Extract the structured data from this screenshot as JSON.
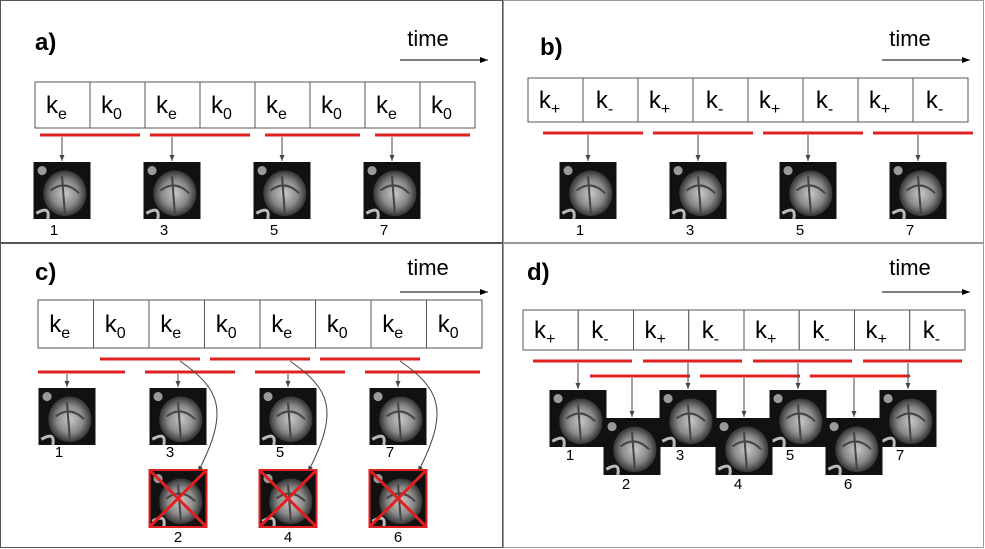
{
  "panels": [
    {
      "label": "a)",
      "time": "time",
      "cells": [
        {
          "main": "k",
          "sub": "e"
        },
        {
          "main": "k",
          "sub": "0"
        },
        {
          "main": "k",
          "sub": "e"
        },
        {
          "main": "k",
          "sub": "0"
        },
        {
          "main": "k",
          "sub": "e"
        },
        {
          "main": "k",
          "sub": "0"
        },
        {
          "main": "k",
          "sub": "e"
        },
        {
          "main": "k",
          "sub": "0"
        }
      ],
      "images": [
        "1",
        "3",
        "5",
        "7"
      ]
    },
    {
      "label": "b)",
      "time": "time",
      "cells": [
        {
          "main": "k",
          "sub": "+"
        },
        {
          "main": "k",
          "sub": "-"
        },
        {
          "main": "k",
          "sub": "+"
        },
        {
          "main": "k",
          "sub": "-"
        },
        {
          "main": "k",
          "sub": "+"
        },
        {
          "main": "k",
          "sub": "-"
        },
        {
          "main": "k",
          "sub": "+"
        },
        {
          "main": "k",
          "sub": "-"
        }
      ],
      "images": [
        "1",
        "3",
        "5",
        "7"
      ]
    },
    {
      "label": "c)",
      "time": "time",
      "cells": [
        {
          "main": "k",
          "sub": "e"
        },
        {
          "main": "k",
          "sub": "0"
        },
        {
          "main": "k",
          "sub": "e"
        },
        {
          "main": "k",
          "sub": "0"
        },
        {
          "main": "k",
          "sub": "e"
        },
        {
          "main": "k",
          "sub": "0"
        },
        {
          "main": "k",
          "sub": "e"
        },
        {
          "main": "k",
          "sub": "0"
        }
      ],
      "images": [
        "1",
        "3",
        "5",
        "7"
      ],
      "second_images": [
        "2",
        "4",
        "6"
      ]
    },
    {
      "label": "d)",
      "time": "time",
      "cells": [
        {
          "main": "k",
          "sub": "+"
        },
        {
          "main": "k",
          "sub": "-"
        },
        {
          "main": "k",
          "sub": "+"
        },
        {
          "main": "k",
          "sub": "-"
        },
        {
          "main": "k",
          "sub": "+"
        },
        {
          "main": "k",
          "sub": "-"
        },
        {
          "main": "k",
          "sub": "+"
        },
        {
          "main": "k",
          "sub": "-"
        }
      ],
      "images": [
        "1",
        "3",
        "5",
        "7"
      ],
      "second_images": [
        "2",
        "4",
        "6"
      ]
    }
  ]
}
